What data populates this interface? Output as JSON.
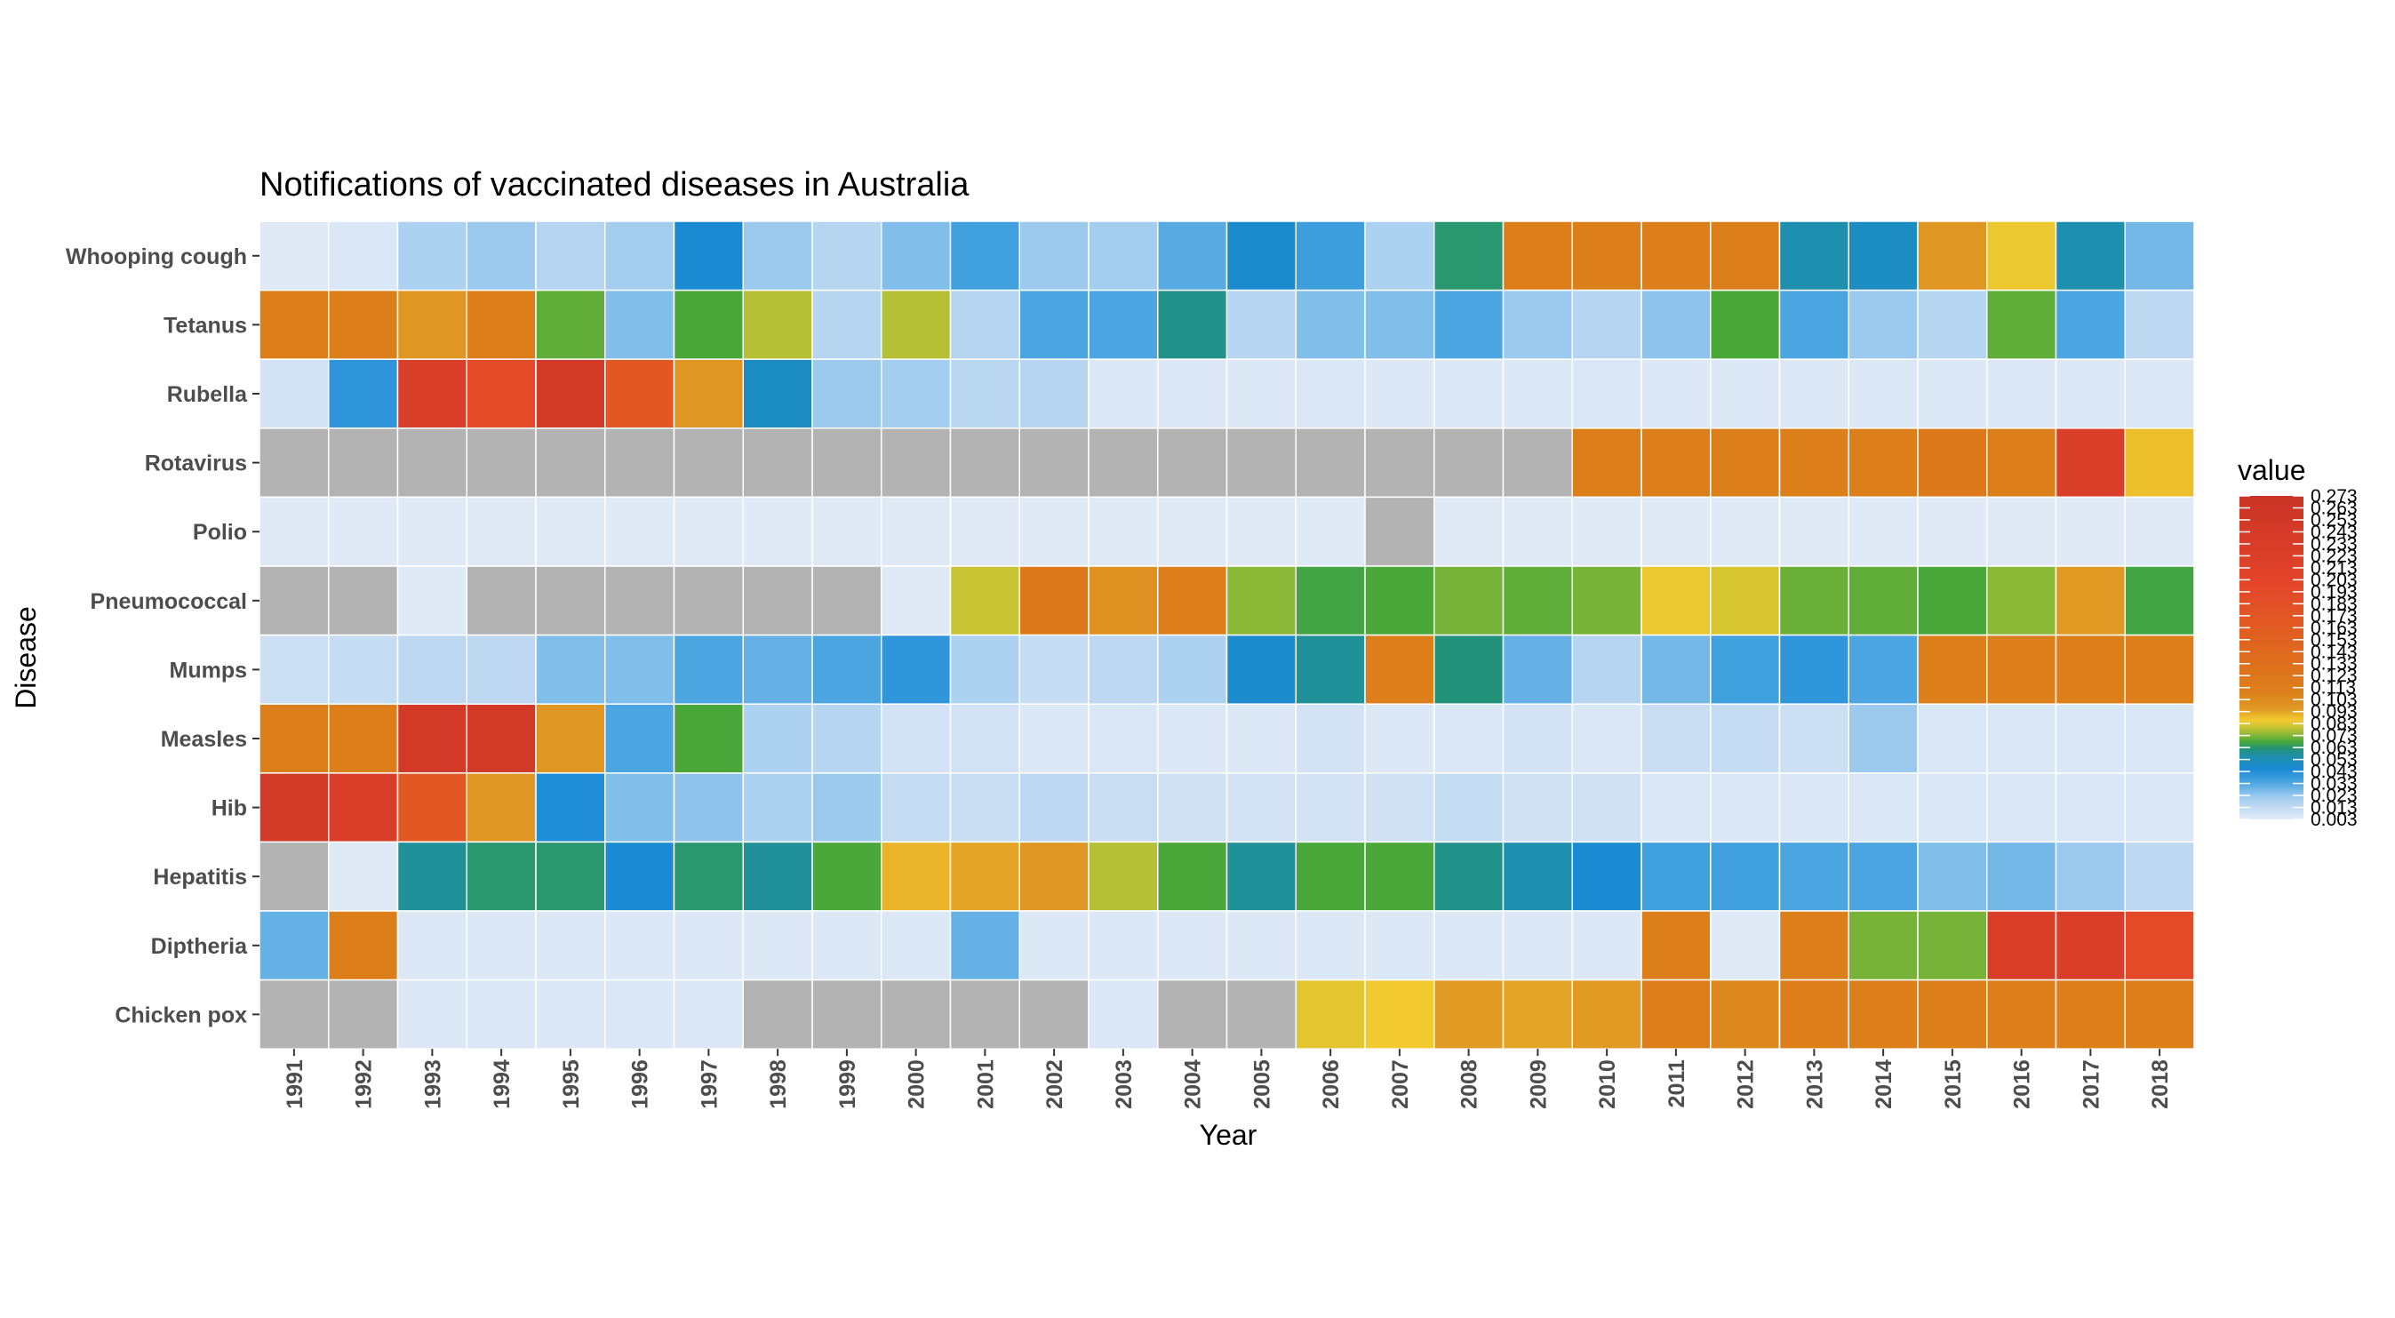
{
  "chart_data": {
    "type": "heatmap",
    "title": "Notifications of vaccinated diseases in Australia",
    "xlabel": "Year",
    "ylabel": "Disease",
    "legend": {
      "title": "value",
      "placement": "right",
      "ticks": [
        "0.003",
        "0.013",
        "0.023",
        "0.033",
        "0.043",
        "0.053",
        "0.063",
        "0.073",
        "0.083",
        "0.093",
        "0.103",
        "0.113",
        "0.123",
        "0.133",
        "0.143",
        "0.153",
        "0.163",
        "0.173",
        "0.183",
        "0.193",
        "0.203",
        "0.213",
        "0.223",
        "0.233",
        "0.243",
        "0.253",
        "0.263",
        "0.273"
      ]
    },
    "grid": false,
    "missing_color": "#b3b3b3",
    "x": [
      "1991",
      "1992",
      "1993",
      "1994",
      "1995",
      "1996",
      "1997",
      "1998",
      "1999",
      "2000",
      "2001",
      "2002",
      "2003",
      "2004",
      "2005",
      "2006",
      "2007",
      "2008",
      "2009",
      "2010",
      "2011",
      "2012",
      "2013",
      "2014",
      "2015",
      "2016",
      "2017",
      "2018"
    ],
    "y": [
      "Whooping cough",
      "Tetanus",
      "Rubella",
      "Rotavirus",
      "Polio",
      "Pneumococcal",
      "Mumps",
      "Measles",
      "Hib",
      "Hepatitis",
      "Diptheria",
      "Chicken pox"
    ],
    "values": [
      [
        0.004,
        0.006,
        0.018,
        0.022,
        0.016,
        0.02,
        0.046,
        0.022,
        0.016,
        0.026,
        0.036,
        0.022,
        0.02,
        0.032,
        0.047,
        0.037,
        0.018,
        0.063,
        0.11,
        0.11,
        0.11,
        0.11,
        0.055,
        0.05,
        0.097,
        0.085,
        0.055,
        0.028
      ],
      [
        0.11,
        0.11,
        0.097,
        0.11,
        0.07,
        0.026,
        0.068,
        0.078,
        0.016,
        0.078,
        0.016,
        0.034,
        0.034,
        0.06,
        0.016,
        0.026,
        0.026,
        0.034,
        0.022,
        0.016,
        0.024,
        0.068,
        0.034,
        0.022,
        0.016,
        0.07,
        0.034,
        0.014
      ],
      [
        0.008,
        0.04,
        0.23,
        0.19,
        0.25,
        0.17,
        0.097,
        0.05,
        0.022,
        0.02,
        0.015,
        0.016,
        0.005,
        0.005,
        0.005,
        0.006,
        0.005,
        0.005,
        0.005,
        0.006,
        0.005,
        0.005,
        0.005,
        0.005,
        0.005,
        0.005,
        0.005,
        0.005
      ],
      [
        null,
        null,
        null,
        null,
        null,
        null,
        null,
        null,
        null,
        null,
        null,
        null,
        null,
        null,
        null,
        null,
        null,
        null,
        null,
        0.11,
        0.11,
        0.11,
        0.11,
        0.11,
        0.12,
        0.11,
        0.23,
        0.088
      ],
      [
        0.004,
        0.004,
        0.004,
        0.004,
        0.004,
        0.004,
        0.004,
        0.004,
        0.004,
        0.004,
        0.004,
        0.004,
        0.004,
        0.004,
        0.004,
        0.004,
        null,
        0.004,
        0.004,
        0.004,
        0.004,
        0.004,
        0.004,
        0.004,
        0.004,
        0.004,
        0.004,
        0.004
      ],
      [
        null,
        null,
        0.004,
        null,
        null,
        null,
        null,
        null,
        null,
        0.004,
        0.08,
        0.12,
        0.1,
        0.11,
        0.074,
        0.067,
        0.068,
        0.072,
        0.07,
        0.072,
        0.085,
        0.082,
        0.071,
        0.07,
        0.068,
        0.074,
        0.095,
        0.067
      ],
      [
        0.01,
        0.012,
        0.014,
        0.014,
        0.026,
        0.026,
        0.034,
        0.03,
        0.034,
        0.04,
        0.018,
        0.012,
        0.014,
        0.018,
        0.047,
        0.058,
        0.11,
        0.062,
        0.03,
        0.016,
        0.028,
        0.036,
        0.04,
        0.034,
        0.11,
        0.11,
        0.11,
        0.11
      ],
      [
        0.11,
        0.11,
        0.25,
        0.25,
        0.097,
        0.034,
        0.068,
        0.018,
        0.016,
        0.008,
        0.008,
        0.005,
        0.006,
        0.005,
        0.005,
        0.008,
        0.005,
        0.006,
        0.008,
        0.006,
        0.011,
        0.012,
        0.01,
        0.022,
        0.006,
        0.006,
        0.006,
        0.006
      ],
      [
        0.25,
        0.23,
        0.17,
        0.097,
        0.044,
        0.026,
        0.024,
        0.018,
        0.022,
        0.012,
        0.011,
        0.014,
        0.011,
        0.009,
        0.008,
        0.008,
        0.009,
        0.012,
        0.009,
        0.009,
        0.006,
        0.006,
        0.006,
        0.006,
        0.006,
        0.006,
        0.006,
        0.006
      ],
      [
        null,
        0.004,
        0.058,
        0.063,
        0.063,
        0.046,
        0.063,
        0.058,
        0.068,
        0.09,
        0.093,
        0.097,
        0.078,
        0.068,
        0.058,
        0.068,
        0.068,
        0.06,
        0.055,
        0.046,
        0.036,
        0.036,
        0.034,
        0.034,
        0.026,
        0.028,
        0.022,
        0.014
      ],
      [
        0.03,
        0.11,
        0.005,
        0.005,
        0.005,
        0.005,
        0.005,
        0.005,
        0.005,
        0.005,
        0.03,
        0.005,
        0.005,
        0.005,
        0.005,
        0.005,
        0.005,
        0.005,
        0.005,
        0.005,
        0.11,
        0.004,
        0.11,
        0.072,
        0.072,
        0.23,
        0.23,
        0.19
      ],
      [
        null,
        null,
        0.005,
        0.006,
        0.005,
        0.006,
        0.005,
        null,
        null,
        null,
        null,
        null,
        0.006,
        null,
        null,
        0.084,
        0.086,
        0.095,
        0.093,
        0.095,
        0.11,
        0.105,
        0.11,
        0.11,
        0.11,
        0.11,
        0.11,
        0.11
      ]
    ]
  }
}
